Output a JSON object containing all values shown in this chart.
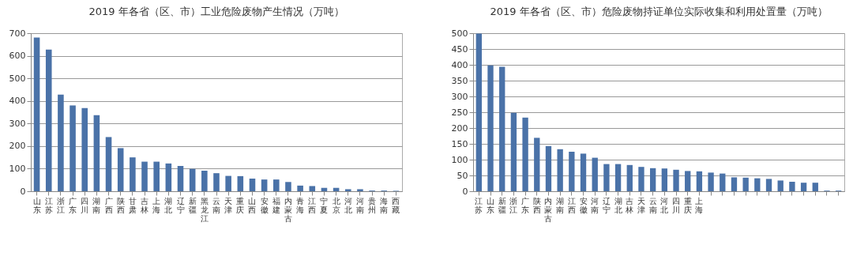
{
  "chart_data": [
    {
      "type": "bar",
      "title": "2019 年各省（区、市）工业危险废物产生情况（万吨）",
      "categories": [
        "山东",
        "江苏",
        "浙江",
        "广东",
        "四川",
        "湖南",
        "广西",
        "陕西",
        "甘肃",
        "吉林",
        "上海",
        "湖北",
        "辽宁",
        "新疆",
        "黑龙江",
        "云南",
        "天津",
        "重庆",
        "山西",
        "安徽",
        "福建",
        "内蒙古",
        "青海",
        "江西",
        "宁夏",
        "北京",
        "河北",
        "河南",
        "贵州",
        "海南",
        "西藏"
      ],
      "values": [
        681,
        627,
        428,
        380,
        368,
        337,
        240,
        191,
        150,
        131,
        131,
        123,
        112,
        99,
        91,
        80,
        68,
        67,
        56,
        52,
        52,
        41,
        25,
        23,
        15,
        15,
        9,
        9,
        3,
        3,
        2
      ],
      "color": "#4a72a8",
      "ylim": [
        0,
        700
      ],
      "yticks": [
        0,
        100,
        200,
        300,
        400,
        500,
        600,
        700
      ],
      "grid": "y"
    },
    {
      "type": "bar",
      "title": "2019 年各省（区、市）危险废物持证单位实际收集和利用处置量（万吨）",
      "categories": [
        "江苏",
        "山东",
        "新疆",
        "浙江",
        "广东",
        "陕西",
        "内蒙古",
        "湖南",
        "江西",
        "安徽",
        "河南",
        "辽宁",
        "湖北",
        "吉林",
        "天津",
        "云南",
        "河北",
        "四川",
        "重庆",
        "上海",
        null,
        null,
        null,
        null,
        null,
        null,
        null,
        null,
        null,
        null,
        null,
        null
      ],
      "values": [
        499,
        398,
        394,
        248,
        233,
        169,
        143,
        133,
        125,
        119,
        106,
        86,
        86,
        83,
        77,
        73,
        72,
        68,
        64,
        63,
        59,
        56,
        44,
        43,
        41,
        39,
        34,
        30,
        27,
        27,
        2,
        2
      ],
      "color": "#4a72a8",
      "ylim": [
        0,
        500
      ],
      "yticks": [
        0,
        50,
        100,
        150,
        200,
        250,
        300,
        350,
        400,
        450,
        500
      ],
      "grid": "y"
    }
  ]
}
